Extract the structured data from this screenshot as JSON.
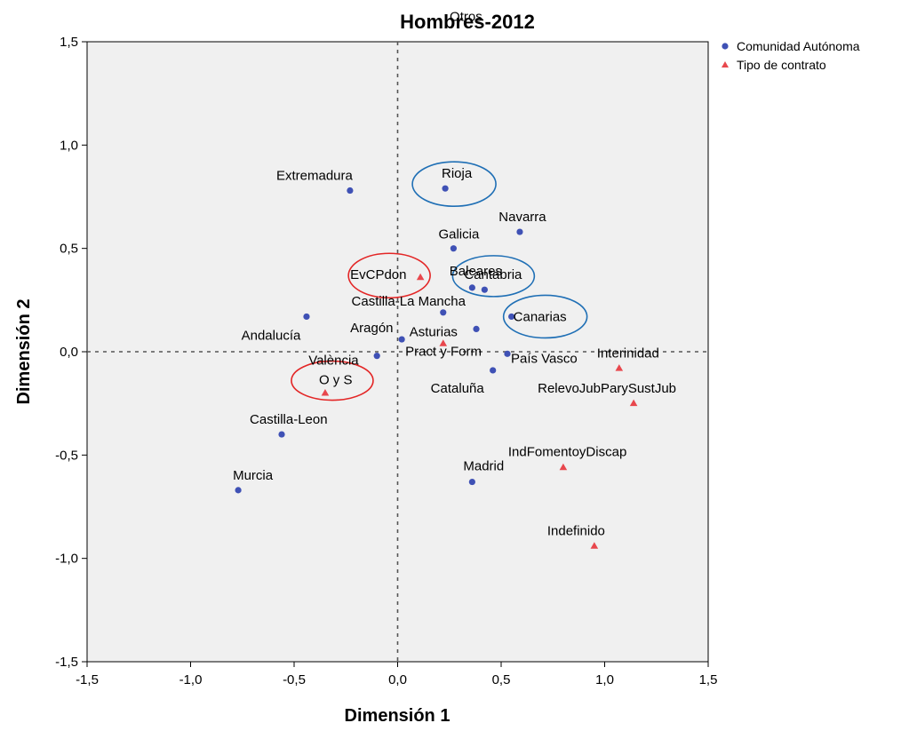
{
  "chart_data": {
    "type": "scatter",
    "title": "Hombres-2012",
    "xlabel": "Dimensión 1",
    "ylabel": "Dimensión 2",
    "xlim": [
      -1.5,
      1.5
    ],
    "ylim": [
      -1.5,
      1.5
    ],
    "xticks": [
      "-1,5",
      "-1,0",
      "-0,5",
      "0,0",
      "0,5",
      "1,0",
      "1,5"
    ],
    "yticks": [
      "-1,5",
      "-1,0",
      "-0,5",
      "0,0",
      "0,5",
      "1,0",
      "1,5"
    ],
    "xtick_values": [
      -1.5,
      -1.0,
      -0.5,
      0.0,
      0.5,
      1.0,
      1.5
    ],
    "ytick_values": [
      -1.5,
      -1.0,
      -0.5,
      0.0,
      0.5,
      1.0,
      1.5
    ],
    "reference_lines": {
      "x": 0.0,
      "y": 0.0,
      "style": "dashed"
    },
    "background": "#f0f0f0",
    "legend_position": "top-right",
    "series": [
      {
        "name": "Comunidad Autónoma",
        "marker": "circle",
        "color": "#3f51b5",
        "points": [
          {
            "label": "Otros",
            "x": 0.33,
            "y": 1.6,
            "label_only": true
          },
          {
            "label": "Rioja",
            "x": 0.23,
            "y": 0.79
          },
          {
            "label": "Extremadura",
            "x": -0.23,
            "y": 0.78
          },
          {
            "label": "Navarra",
            "x": 0.59,
            "y": 0.58
          },
          {
            "label": "Galicia",
            "x": 0.27,
            "y": 0.5
          },
          {
            "label": "Baleares",
            "x": 0.36,
            "y": 0.31
          },
          {
            "label": "Cantabria",
            "x": 0.42,
            "y": 0.3
          },
          {
            "label": "Castilla-La Mancha",
            "x": 0.22,
            "y": 0.19
          },
          {
            "label": "Andalucía",
            "x": -0.44,
            "y": 0.17
          },
          {
            "label": "Canarias",
            "x": 0.55,
            "y": 0.17
          },
          {
            "label": "Aragón",
            "x": 0.02,
            "y": 0.06
          },
          {
            "label": "Pract y Form",
            "x": 0.38,
            "y": 0.11
          },
          {
            "label": "País Vasco",
            "x": 0.53,
            "y": -0.01
          },
          {
            "label": "València",
            "x": -0.1,
            "y": -0.02
          },
          {
            "label": "Cataluña",
            "x": 0.46,
            "y": -0.09
          },
          {
            "label": "Castilla-Leon",
            "x": -0.56,
            "y": -0.4
          },
          {
            "label": "Madrid",
            "x": 0.36,
            "y": -0.63
          },
          {
            "label": "Murcia",
            "x": -0.77,
            "y": -0.67
          }
        ]
      },
      {
        "name": "Tipo de contrato",
        "marker": "triangle",
        "color": "#e8474d",
        "points": [
          {
            "label": "EvCPdon",
            "x": 0.11,
            "y": 0.36
          },
          {
            "label": "Asturias",
            "x": 0.22,
            "y": 0.04
          },
          {
            "label": "Interinidad",
            "x": 1.07,
            "y": -0.08
          },
          {
            "label": "O y S",
            "x": -0.35,
            "y": -0.2
          },
          {
            "label": "RelevoJubParySustJub",
            "x": 1.14,
            "y": -0.25
          },
          {
            "label": "IndFomentoyDiscap",
            "x": 0.8,
            "y": -0.56
          },
          {
            "label": "Indefinido",
            "x": 0.95,
            "y": -0.94
          }
        ]
      }
    ],
    "annotations": [
      {
        "type": "ellipse",
        "color": "#1f6fb5",
        "around": "Rioja"
      },
      {
        "type": "ellipse",
        "color": "#1f6fb5",
        "around": "Baleares"
      },
      {
        "type": "ellipse",
        "color": "#1f6fb5",
        "around": "Canarias"
      },
      {
        "type": "ellipse",
        "color": "#e32626",
        "around": "EvCPdon"
      },
      {
        "type": "ellipse",
        "color": "#e32626",
        "around": "O y S"
      }
    ]
  }
}
